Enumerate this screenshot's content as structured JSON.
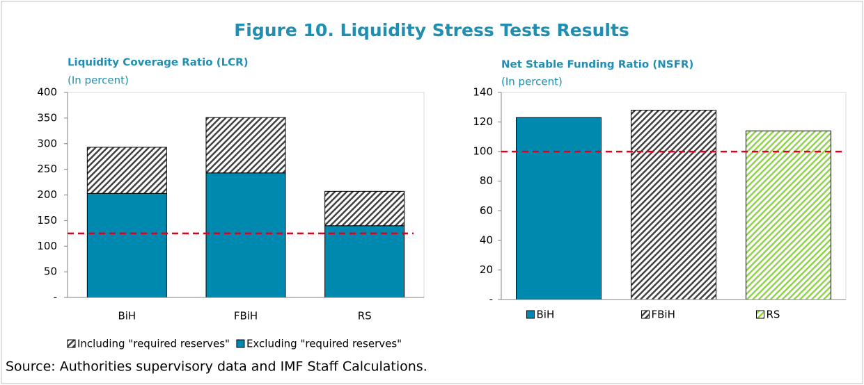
{
  "title": "Figure 10. Liquidity Stress Tests Results",
  "source": "Source: Authorities supervisory data and IMF Staff Calculations.",
  "chart_data": [
    {
      "type": "stacked_bar",
      "title": "Liquidity Coverage Ratio (LCR)",
      "subtitle": "(In percent)",
      "categories": [
        "BiH",
        "FBiH",
        "RS"
      ],
      "series": [
        {
          "name": "Excluding \"required reserves\"",
          "color": "#0089ae",
          "hatch": false,
          "values": [
            203,
            243,
            140
          ]
        },
        {
          "name": "Including \"required reserves\"",
          "color": "#404040",
          "hatch": true,
          "values": [
            90,
            108,
            67
          ]
        }
      ],
      "legend_order": [
        1,
        0
      ],
      "ylim": [
        0,
        400
      ],
      "yticks": [
        {
          "value": 0,
          "label": "-"
        },
        50,
        100,
        150,
        200,
        250,
        300,
        350,
        400
      ],
      "reference_line": 125,
      "reference_color": "#e0001b",
      "grid": false
    },
    {
      "type": "bar",
      "title": "Net Stable Funding Ratio (NSFR)",
      "subtitle": "(In percent)",
      "categories": [
        "BiH",
        "FBiH",
        "RS"
      ],
      "values": [
        123,
        128,
        114
      ],
      "colors": [
        "#0089ae",
        "#404040",
        "#92d050"
      ],
      "hatch": [
        false,
        true,
        true
      ],
      "ylim": [
        0,
        140
      ],
      "yticks": [
        {
          "value": 0,
          "label": "-"
        },
        20,
        40,
        60,
        80,
        100,
        120,
        140
      ],
      "reference_line": 100,
      "reference_color": "#e0001b",
      "grid": false
    }
  ]
}
